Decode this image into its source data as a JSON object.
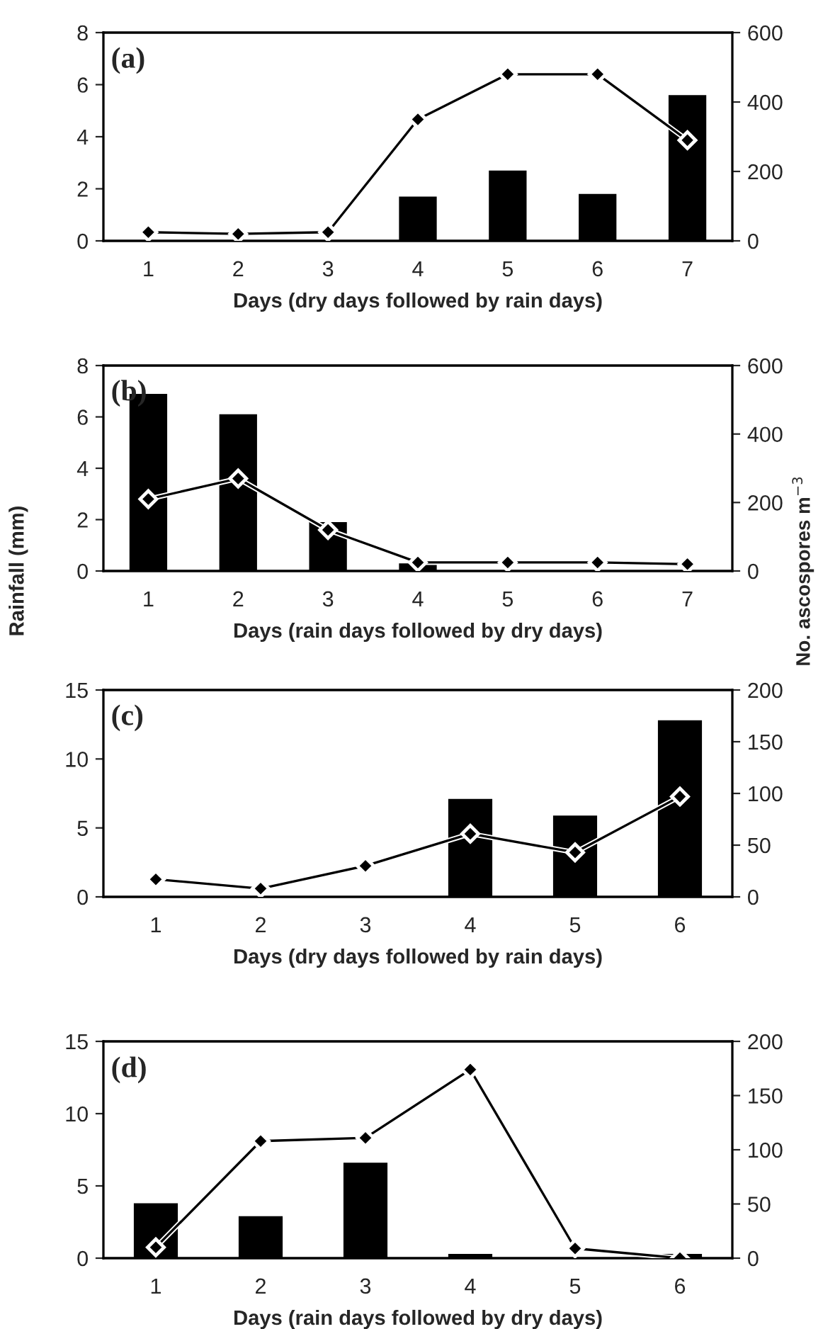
{
  "chart_data": [
    {
      "type": "bar",
      "categories": [
        "1",
        "2",
        "3",
        "4",
        "5",
        "6",
        "7"
      ],
      "xlabel": "Days (dry days followed by rain days)",
      "annotations": [
        "(a)"
      ],
      "ylim": [
        0,
        8
      ],
      "yticks": [
        0,
        2,
        4,
        6,
        8
      ],
      "y2lim": [
        0,
        600
      ],
      "y2ticks": [
        0,
        200,
        400,
        600
      ],
      "marker": "diamond",
      "grid": false,
      "series": [
        {
          "color": "#000000",
          "values": [
            0,
            0,
            0,
            1.7,
            2.7,
            1.8,
            5.6
          ]
        },
        {
          "type": "line",
          "axis": "y2",
          "color": "#000000",
          "values": [
            25,
            20,
            25,
            350,
            480,
            480,
            290
          ]
        }
      ]
    },
    {
      "type": "bar",
      "categories": [
        "1",
        "2",
        "3",
        "4",
        "5",
        "6",
        "7"
      ],
      "xlabel": "Days (rain days followed by dry days)",
      "ylabel": "Rainfall (mm)",
      "y2label": "No. ascospores m$^{−3}$",
      "annotations": [
        "(b)"
      ],
      "ylim": [
        0,
        8
      ],
      "yticks": [
        0,
        2,
        4,
        6,
        8
      ],
      "y2lim": [
        0,
        600
      ],
      "y2ticks": [
        0,
        200,
        400,
        600
      ],
      "marker": "diamond",
      "grid": false,
      "series": [
        {
          "color": "#000000",
          "values": [
            6.9,
            6.1,
            1.9,
            0.3,
            0,
            0,
            0
          ]
        },
        {
          "type": "line",
          "axis": "y2",
          "color": "#000000",
          "values": [
            210,
            270,
            120,
            25,
            25,
            25,
            20
          ]
        }
      ]
    },
    {
      "type": "bar",
      "categories": [
        "1",
        "2",
        "3",
        "4",
        "5",
        "6"
      ],
      "xlabel": "Days (dry days followed by rain days)",
      "annotations": [
        "(c)"
      ],
      "ylim": [
        0,
        15
      ],
      "yticks": [
        0,
        5,
        10,
        15
      ],
      "y2lim": [
        0,
        200
      ],
      "y2ticks": [
        0,
        50,
        100,
        150,
        200
      ],
      "marker": "diamond",
      "grid": false,
      "series": [
        {
          "color": "#000000",
          "values": [
            0,
            0,
            0,
            7.1,
            5.9,
            12.8
          ]
        },
        {
          "type": "line",
          "axis": "y2",
          "color": "#000000",
          "values": [
            17,
            8,
            30,
            61,
            43,
            97
          ]
        }
      ]
    },
    {
      "type": "bar",
      "categories": [
        "1",
        "2",
        "3",
        "4",
        "5",
        "6"
      ],
      "xlabel": "Days (rain days followed by dry days)",
      "annotations": [
        "(d)"
      ],
      "ylim": [
        0,
        15
      ],
      "yticks": [
        0,
        5,
        10,
        15
      ],
      "y2lim": [
        0,
        200
      ],
      "y2ticks": [
        0,
        50,
        100,
        150,
        200
      ],
      "marker": "diamond",
      "grid": false,
      "series": [
        {
          "color": "#000000",
          "values": [
            3.8,
            2.9,
            6.6,
            0.3,
            0,
            0.3
          ]
        },
        {
          "type": "line",
          "axis": "y2",
          "color": "#000000",
          "values": [
            10,
            108,
            111,
            174,
            9,
            0
          ]
        }
      ]
    }
  ]
}
